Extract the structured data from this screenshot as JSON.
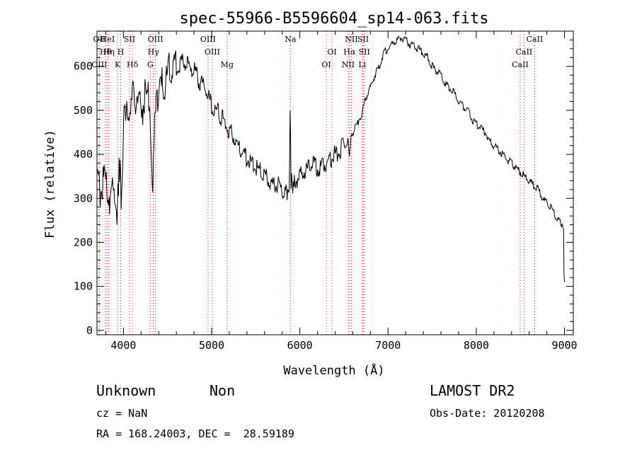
{
  "chart_data": {
    "type": "line",
    "title": "spec-55966-B5596604_sp14-063.fits",
    "xlabel": "Wavelength (Å)",
    "ylabel": "Flux (relative)",
    "xlim": [
      3700,
      9100
    ],
    "ylim": [
      -10,
      680
    ],
    "x_ticks": [
      4000,
      5000,
      6000,
      7000,
      8000,
      9000
    ],
    "y_ticks": [
      0,
      100,
      200,
      300,
      400,
      500,
      600
    ],
    "grid": false,
    "line_color": "#000000",
    "marker_color": "#ff0000",
    "series": [
      {
        "x": [
          3700,
          3750,
          3800,
          3850,
          3900,
          3920,
          3950,
          3980,
          4000,
          4050,
          4100,
          4150,
          4200,
          4250,
          4300,
          4320,
          4340,
          4360,
          4400,
          4450,
          4500,
          4550,
          4600,
          4650,
          4700,
          4750,
          4800,
          4850,
          4900,
          4950,
          5000,
          5050,
          5100,
          5150,
          5200,
          5250,
          5300,
          5350,
          5400,
          5450,
          5500,
          5550,
          5600,
          5650,
          5700,
          5750,
          5800,
          5850,
          5880,
          5890,
          5900,
          5920,
          5950,
          6000,
          6050,
          6100,
          6150,
          6200,
          6250,
          6300,
          6350,
          6400,
          6450,
          6500,
          6550,
          6563,
          6580,
          6600,
          6650,
          6700,
          6750,
          6800,
          6850,
          6900,
          6950,
          7000,
          7050,
          7100,
          7150,
          7200,
          7250,
          7300,
          7350,
          7400,
          7450,
          7500,
          7550,
          7600,
          7650,
          7700,
          7750,
          7800,
          7850,
          7900,
          7950,
          8000,
          8050,
          8100,
          8150,
          8200,
          8250,
          8300,
          8350,
          8400,
          8450,
          8500,
          8550,
          8600,
          8650,
          8700,
          8750,
          8800,
          8850,
          8900,
          8950,
          8990,
          8995,
          9000
        ],
        "values": [
          330,
          320,
          340,
          300,
          330,
          230,
          380,
          300,
          470,
          480,
          520,
          540,
          500,
          530,
          520,
          330,
          360,
          500,
          540,
          560,
          580,
          600,
          600,
          610,
          605,
          600,
          590,
          570,
          560,
          540,
          510,
          500,
          490,
          470,
          450,
          440,
          420,
          410,
          390,
          380,
          370,
          360,
          350,
          340,
          330,
          330,
          320,
          310,
          320,
          520,
          340,
          330,
          340,
          350,
          360,
          370,
          380,
          370,
          370,
          380,
          390,
          400,
          410,
          420,
          430,
          390,
          440,
          450,
          470,
          490,
          530,
          550,
          580,
          600,
          630,
          640,
          650,
          660,
          665,
          660,
          650,
          645,
          640,
          630,
          620,
          600,
          590,
          580,
          560,
          550,
          540,
          520,
          510,
          500,
          480,
          470,
          460,
          450,
          430,
          420,
          410,
          400,
          390,
          380,
          370,
          360,
          350,
          340,
          330,
          320,
          300,
          290,
          280,
          260,
          245,
          230,
          120,
          110
        ]
      }
    ],
    "spectral_lines": [
      {
        "label": "OII",
        "wavelength": 3727
      },
      {
        "label": "Hθ",
        "wavelength": 3797
      },
      {
        "label": "OIII",
        "wavelength": 3727
      },
      {
        "label": "HeI",
        "wavelength": 3820
      },
      {
        "label": "Hη",
        "wavelength": 3835
      },
      {
        "label": "K",
        "wavelength": 3934
      },
      {
        "label": "SII",
        "wavelength": 4069
      },
      {
        "label": "H",
        "wavelength": 3969
      },
      {
        "label": "Hδ",
        "wavelength": 4102
      },
      {
        "label": "OIII",
        "wavelength": 4363
      },
      {
        "label": "Hγ",
        "wavelength": 4340
      },
      {
        "label": "G",
        "wavelength": 4305
      },
      {
        "label": "OIII",
        "wavelength": 4959
      },
      {
        "label": "OIII",
        "wavelength": 5007
      },
      {
        "label": "Mg",
        "wavelength": 5175
      },
      {
        "label": "Na",
        "wavelength": 5893
      },
      {
        "label": "OI",
        "wavelength": 6364
      },
      {
        "label": "OI",
        "wavelength": 6300
      },
      {
        "label": "NII",
        "wavelength": 6584
      },
      {
        "label": "Hα",
        "wavelength": 6563
      },
      {
        "label": "NII",
        "wavelength": 6548
      },
      {
        "label": "SII",
        "wavelength": 6717
      },
      {
        "label": "SII",
        "wavelength": 6731
      },
      {
        "label": "Li",
        "wavelength": 6708
      },
      {
        "label": "CaII",
        "wavelength": 8662
      },
      {
        "label": "CaII",
        "wavelength": 8542
      },
      {
        "label": "CaII",
        "wavelength": 8498
      }
    ]
  },
  "footer": {
    "classification": "Unknown",
    "subclass": "Non",
    "survey": "LAMOST DR2",
    "cz": "cz = NaN",
    "obs_date": "Obs-Date: 20120208",
    "coords": "RA = 168.24003, DEC =  28.59189"
  }
}
